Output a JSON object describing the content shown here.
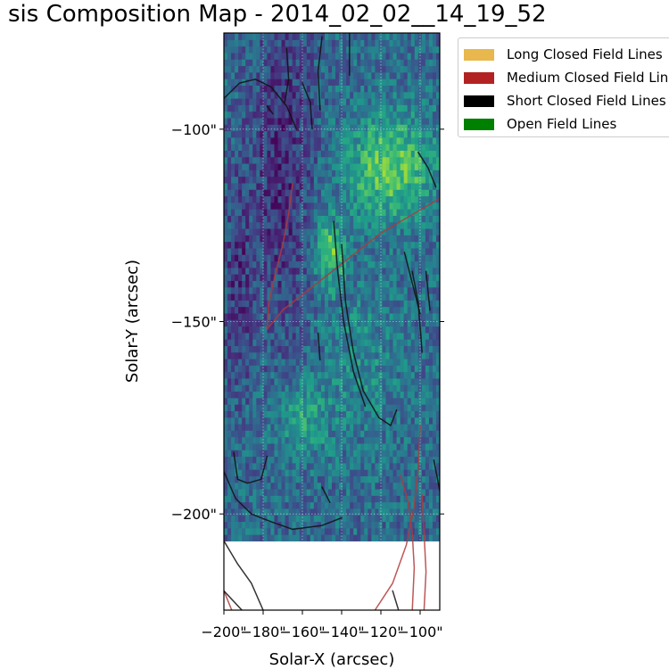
{
  "chart_data": {
    "type": "heatmap",
    "title": "sis Composition Map - 2014_02_02__14_19_52",
    "xlabel": "Solar-X (arcsec)",
    "ylabel": "Solar-Y (arcsec)",
    "xlim": [
      -200,
      -90
    ],
    "ylim": [
      -225,
      -75
    ],
    "data_extent_y_min": -207,
    "colormap": "viridis",
    "grid": true,
    "x_ticks": [
      -200,
      -180,
      -160,
      -140,
      -120,
      -100
    ],
    "x_tick_labels": [
      "−200\"",
      "−180\"",
      "−160\"",
      "−140\"",
      "−120\"",
      "−100\""
    ],
    "y_ticks": [
      -100,
      -150,
      -200
    ],
    "y_tick_labels": [
      "−100\"",
      "−150\"",
      "−200\""
    ],
    "legend": {
      "placement": "outside-top-right",
      "entries": [
        {
          "label": "Long Closed Field Lines",
          "color": "#e8b84e"
        },
        {
          "label": "Medium Closed Field Lines",
          "color": "#b22222"
        },
        {
          "label": "Short Closed Field Lines",
          "color": "#000000"
        },
        {
          "label": "Open Field Lines",
          "color": "#008000"
        }
      ]
    },
    "field_lines": [
      {
        "class": "medium",
        "points": [
          [
            -178,
            -152
          ],
          [
            -170,
            -147
          ],
          [
            -160,
            -143
          ],
          [
            -150,
            -139
          ],
          [
            -140,
            -135
          ],
          [
            -130,
            -131
          ],
          [
            -120,
            -127
          ],
          [
            -110,
            -124
          ],
          [
            -100,
            -121
          ],
          [
            -90,
            -118
          ]
        ]
      },
      {
        "class": "medium",
        "points": [
          [
            -178,
            -152
          ],
          [
            -177,
            -145
          ],
          [
            -174,
            -138
          ],
          [
            -170,
            -130
          ],
          [
            -167,
            -122
          ],
          [
            -165,
            -114
          ]
        ]
      },
      {
        "class": "medium",
        "points": [
          [
            -123,
            -225
          ],
          [
            -114,
            -218
          ],
          [
            -107,
            -208
          ],
          [
            -103,
            -198
          ],
          [
            -101,
            -188
          ],
          [
            -100,
            -177
          ]
        ]
      },
      {
        "class": "medium",
        "points": [
          [
            -104,
            -225
          ],
          [
            -103,
            -214
          ],
          [
            -104,
            -205
          ],
          [
            -106,
            -197
          ],
          [
            -110,
            -190
          ]
        ]
      },
      {
        "class": "medium",
        "points": [
          [
            -98,
            -225
          ],
          [
            -97,
            -215
          ],
          [
            -98,
            -205
          ],
          [
            -99,
            -195
          ]
        ]
      },
      {
        "class": "medium",
        "points": [
          [
            -200,
            -220
          ],
          [
            -196,
            -225
          ]
        ]
      },
      {
        "class": "short",
        "points": [
          [
            -200,
            -92
          ],
          [
            -192,
            -88
          ],
          [
            -184,
            -87
          ],
          [
            -176,
            -89
          ],
          [
            -168,
            -94
          ],
          [
            -163,
            -100
          ]
        ]
      },
      {
        "class": "short",
        "points": [
          [
            -200,
            -189
          ],
          [
            -194,
            -196
          ],
          [
            -186,
            -200
          ],
          [
            -176,
            -202
          ],
          [
            -165,
            -204
          ],
          [
            -150,
            -203
          ],
          [
            -140,
            -201
          ]
        ]
      },
      {
        "class": "short",
        "points": [
          [
            -195,
            -184
          ],
          [
            -193,
            -191
          ],
          [
            -188,
            -192
          ],
          [
            -181,
            -191
          ],
          [
            -178,
            -185
          ]
        ]
      },
      {
        "class": "short",
        "points": [
          [
            -200,
            -220
          ],
          [
            -189,
            -226
          ]
        ]
      },
      {
        "class": "short",
        "points": [
          [
            -200,
            -207
          ],
          [
            -193,
            -213
          ],
          [
            -186,
            -218
          ],
          [
            -180,
            -225
          ]
        ]
      },
      {
        "class": "short",
        "points": [
          [
            -140,
            -130
          ],
          [
            -138,
            -145
          ],
          [
            -134,
            -158
          ],
          [
            -129,
            -168
          ],
          [
            -121,
            -175
          ],
          [
            -115,
            -177
          ],
          [
            -112,
            -173
          ]
        ]
      },
      {
        "class": "short",
        "points": [
          [
            -144,
            -124
          ],
          [
            -142,
            -137
          ],
          [
            -139,
            -150
          ],
          [
            -134,
            -163
          ],
          [
            -128,
            -172
          ]
        ]
      },
      {
        "class": "short",
        "points": [
          [
            -168,
            -79
          ],
          [
            -167,
            -87
          ],
          [
            -169,
            -93
          ]
        ]
      },
      {
        "class": "short",
        "points": [
          [
            -150,
            -76
          ],
          [
            -152,
            -85
          ],
          [
            -151,
            -95
          ]
        ]
      },
      {
        "class": "short",
        "points": [
          [
            -160,
            -88
          ],
          [
            -156,
            -93
          ],
          [
            -155,
            -100
          ]
        ]
      },
      {
        "class": "short",
        "points": [
          [
            -136,
            -75
          ],
          [
            -136,
            -86
          ]
        ]
      },
      {
        "class": "short",
        "points": [
          [
            -108,
            -132
          ],
          [
            -104,
            -140
          ],
          [
            -100,
            -148
          ]
        ]
      },
      {
        "class": "short",
        "points": [
          [
            -101,
            -106
          ],
          [
            -96,
            -110
          ],
          [
            -92,
            -115
          ]
        ]
      },
      {
        "class": "short",
        "points": [
          [
            -104,
            -137
          ],
          [
            -101,
            -145
          ],
          [
            -99,
            -158
          ]
        ]
      },
      {
        "class": "short",
        "points": [
          [
            -97,
            -137
          ],
          [
            -95,
            -147
          ]
        ]
      },
      {
        "class": "short",
        "points": [
          [
            -93,
            -186
          ],
          [
            -90,
            -194
          ]
        ]
      },
      {
        "class": "short",
        "points": [
          [
            -152,
            -153
          ],
          [
            -151,
            -160
          ]
        ]
      },
      {
        "class": "short",
        "points": [
          [
            -114,
            -220
          ],
          [
            -111,
            -225
          ]
        ]
      },
      {
        "class": "short",
        "points": [
          [
            -178,
            -94
          ],
          [
            -175,
            -96
          ]
        ]
      },
      {
        "class": "short",
        "points": [
          [
            -150,
            -193
          ],
          [
            -146,
            -197
          ]
        ]
      }
    ]
  }
}
